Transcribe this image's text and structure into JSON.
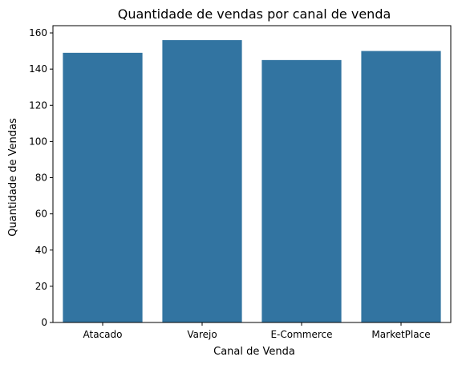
{
  "chart_data": {
    "type": "bar",
    "title": "Quantidade de vendas por canal de venda",
    "xlabel": "Canal de Venda",
    "ylabel": "Quantidade de Vendas",
    "categories": [
      "Atacado",
      "Varejo",
      "E-Commerce",
      "MarketPlace"
    ],
    "values": [
      149,
      156,
      145,
      150
    ],
    "ylim": [
      0,
      164
    ],
    "yticks": [
      0,
      20,
      40,
      60,
      80,
      100,
      120,
      140,
      160
    ],
    "grid": false,
    "legend": "none",
    "bar_color": "#3274a1"
  }
}
